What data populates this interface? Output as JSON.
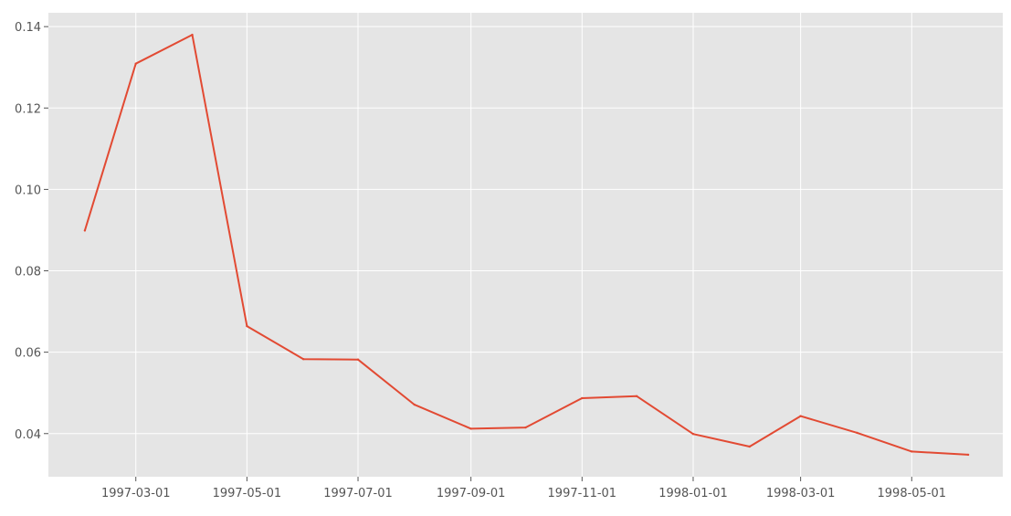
{
  "chart_data": {
    "type": "line",
    "title": "",
    "xlabel": "",
    "ylabel": "",
    "x": [
      "1997-02-01",
      "1997-03-01",
      "1997-04-01",
      "1997-05-01",
      "1997-06-01",
      "1997-07-01",
      "1997-08-01",
      "1997-09-01",
      "1997-10-01",
      "1997-11-01",
      "1997-12-01",
      "1998-01-01",
      "1998-02-01",
      "1998-03-01",
      "1998-04-01",
      "1998-05-01",
      "1998-06-01"
    ],
    "series": [
      {
        "values": [
          0.0899,
          0.1309,
          0.138,
          0.0664,
          0.0583,
          0.0582,
          0.0471,
          0.0412,
          0.0415,
          0.0487,
          0.0492,
          0.0399,
          0.0368,
          0.0443,
          0.0402,
          0.0356,
          0.0348
        ],
        "color": "#E24A33"
      }
    ],
    "x_ticks": [
      "1997-03-01",
      "1997-05-01",
      "1997-07-01",
      "1997-09-01",
      "1997-11-01",
      "1998-01-01",
      "1998-03-01",
      "1998-05-01"
    ],
    "y_ticks": [
      0.04,
      0.06,
      0.08,
      0.1,
      0.12,
      0.14
    ],
    "y_tick_labels": [
      "0.04",
      "0.06",
      "0.08",
      "0.10",
      "0.12",
      "0.14"
    ],
    "ylim": [
      0.0294,
      0.1434
    ],
    "xlim": [
      "1997-01-12",
      "1998-06-20"
    ],
    "grid": true,
    "style": {
      "background": "#E5E5E5",
      "grid_color": "#FFFFFF",
      "tick_color": "#555555"
    }
  }
}
